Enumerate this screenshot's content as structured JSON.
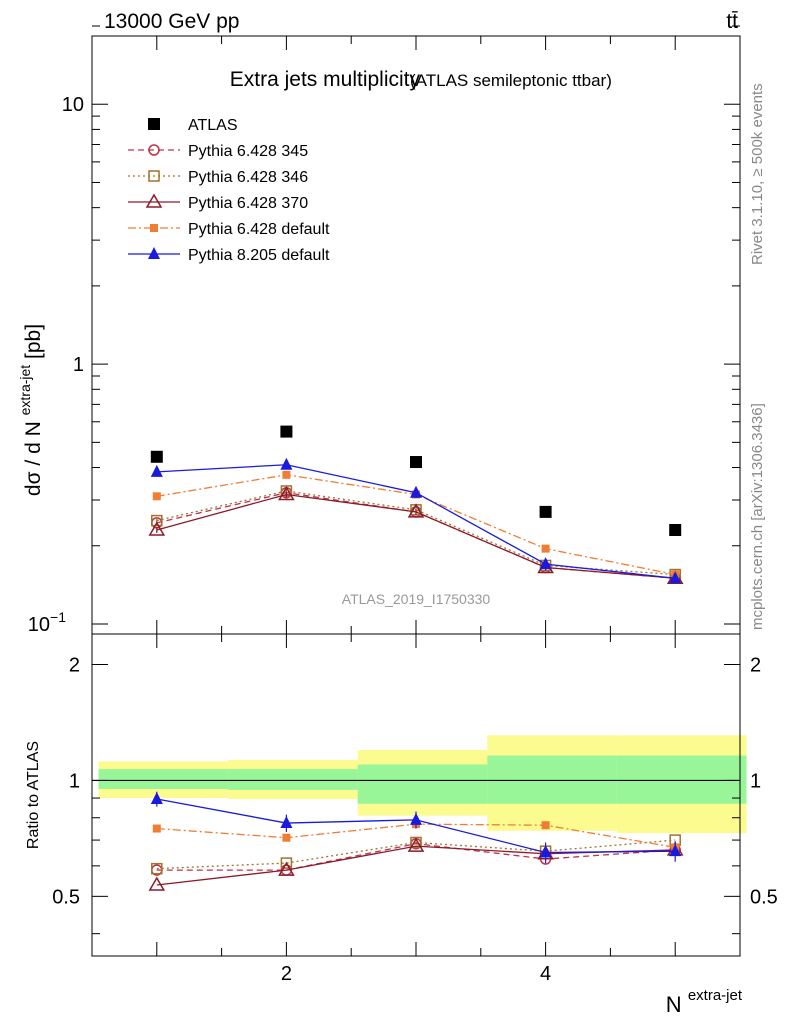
{
  "header": {
    "left": "13000 GeV pp",
    "right": "tt̄"
  },
  "side_labels": {
    "rivet": "Rivet 3.1.10, ≥ 500k events",
    "mcplots": "mcplots.cern.ch [arXiv:1306.3436]"
  },
  "chart_data": [
    {
      "type": "scatter",
      "title": "Extra jets multiplicity",
      "title_suffix": "(ATLAS semileptonic ttbar)",
      "watermark": "ATLAS_2019_I1750330",
      "ylabel_main": "dσ / d N",
      "ylabel_sup": "extra-jet",
      "ylabel_unit": "[pb]",
      "yscale": "log",
      "ylim": [
        0.1,
        20
      ],
      "xlim": [
        0.5,
        5.5
      ],
      "x": [
        1,
        2,
        3,
        4,
        5
      ],
      "ytick_labels": [
        {
          "value": 0.1,
          "base": "10",
          "exp": "−1"
        },
        {
          "value": 1,
          "base": "1",
          "exp": ""
        },
        {
          "value": 10,
          "base": "10",
          "exp": ""
        }
      ],
      "legend": {
        "position": "top-left"
      },
      "series": [
        {
          "name": "ATLAS",
          "values": [
            0.44,
            0.55,
            0.42,
            0.27,
            0.23
          ],
          "color": "#000000",
          "marker": "square-filled",
          "line": "none",
          "errors": [
            0.01,
            0.012,
            0.01,
            0.008,
            0.006
          ]
        },
        {
          "name": "Pythia 6.428 345",
          "values": [
            0.245,
            0.32,
            0.27,
            0.165,
            0.15
          ],
          "color": "#c0304a",
          "marker": "circle-open",
          "line": "dashed",
          "errors": [
            0.006,
            0.008,
            0.007,
            0.005,
            0.005
          ]
        },
        {
          "name": "Pythia 6.428 346",
          "values": [
            0.25,
            0.325,
            0.275,
            0.168,
            0.155
          ],
          "color": "#a0722a",
          "marker": "square-open",
          "line": "dotted",
          "errors": [
            0.006,
            0.008,
            0.007,
            0.005,
            0.005
          ]
        },
        {
          "name": "Pythia 6.428 370",
          "values": [
            0.23,
            0.315,
            0.27,
            0.165,
            0.15
          ],
          "color": "#8b1a2b",
          "marker": "triangle-open",
          "line": "solid",
          "errors": [
            0.006,
            0.008,
            0.007,
            0.005,
            0.005
          ]
        },
        {
          "name": "Pythia 6.428 default",
          "values": [
            0.31,
            0.375,
            0.315,
            0.195,
            0.155
          ],
          "color": "#f07d32",
          "marker": "square-filled-small",
          "line": "dashdot",
          "errors": [
            0.006,
            0.008,
            0.007,
            0.005,
            0.005
          ]
        },
        {
          "name": "Pythia 8.205 default",
          "values": [
            0.385,
            0.41,
            0.32,
            0.17,
            0.15
          ],
          "color": "#1a1adc",
          "marker": "triangle-filled",
          "line": "solid",
          "errors": [
            0.012,
            0.015,
            0.014,
            0.008,
            0.007
          ]
        }
      ]
    },
    {
      "type": "scatter",
      "ylabel": "Ratio to ATLAS",
      "xlabel": "N",
      "xlabel_sup": "extra-jet",
      "ylim": [
        0.35,
        2.4
      ],
      "xlim": [
        0.5,
        5.5
      ],
      "x": [
        1,
        2,
        3,
        4,
        5
      ],
      "xtick_labels": [
        "2",
        "4"
      ],
      "ytick_labels": [
        "0.5",
        "1",
        "2"
      ],
      "uncertainty_bands": [
        {
          "name": "stat",
          "color": "#98f598",
          "lower": [
            0.95,
            0.945,
            0.87,
            0.87,
            0.87
          ],
          "upper": [
            1.07,
            1.07,
            1.1,
            1.16,
            1.16
          ],
          "bins": [
            [
              0.5,
              1.5
            ],
            [
              1.5,
              2.5
            ],
            [
              2.5,
              3.5
            ],
            [
              3.5,
              4.5
            ],
            [
              4.5,
              5.5
            ]
          ]
        },
        {
          "name": "total",
          "color": "#fbfb90",
          "lower": [
            0.9,
            0.895,
            0.81,
            0.74,
            0.73
          ],
          "upper": [
            1.12,
            1.13,
            1.2,
            1.31,
            1.31
          ],
          "bins": [
            [
              0.5,
              1.5
            ],
            [
              1.5,
              2.5
            ],
            [
              2.5,
              3.5
            ],
            [
              3.5,
              4.5
            ],
            [
              4.5,
              5.5
            ]
          ]
        }
      ],
      "series": [
        {
          "name": "Pythia 6.428 345",
          "values": [
            0.585,
            0.585,
            0.685,
            0.625,
            0.66
          ],
          "color": "#c0304a",
          "marker": "circle-open",
          "line": "dashed"
        },
        {
          "name": "Pythia 6.428 346",
          "values": [
            0.59,
            0.61,
            0.69,
            0.655,
            0.7
          ],
          "color": "#a0722a",
          "marker": "square-open",
          "line": "dotted"
        },
        {
          "name": "Pythia 6.428 370",
          "values": [
            0.535,
            0.585,
            0.675,
            0.645,
            0.66
          ],
          "color": "#8b1a2b",
          "marker": "triangle-open",
          "line": "solid"
        },
        {
          "name": "Pythia 6.428 default",
          "values": [
            0.75,
            0.71,
            0.77,
            0.765,
            0.67
          ],
          "color": "#f07d32",
          "marker": "square-filled-small",
          "line": "dashdot"
        },
        {
          "name": "Pythia 8.205 default",
          "values": [
            0.895,
            0.775,
            0.79,
            0.65,
            0.655
          ],
          "color": "#1a1adc",
          "marker": "triangle-filled",
          "line": "solid",
          "errors": [
            0.04,
            0.04,
            0.04,
            0.04,
            0.04
          ]
        }
      ]
    }
  ]
}
